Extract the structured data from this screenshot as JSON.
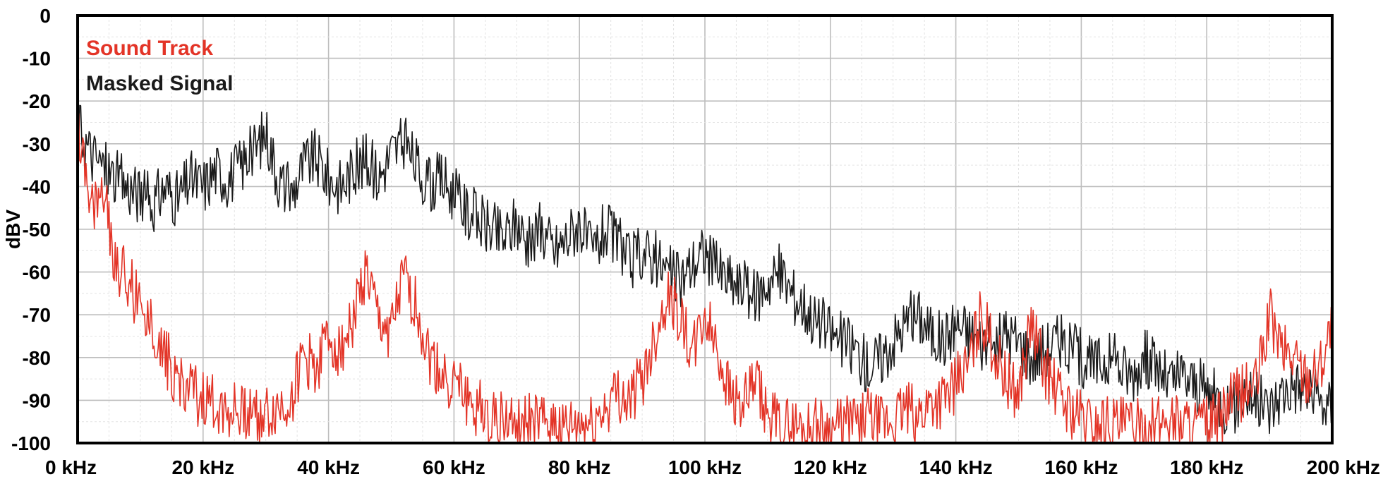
{
  "chart_data": {
    "type": "line",
    "title": "",
    "xlabel": "",
    "ylabel": "dBV",
    "xlim": [
      0,
      200
    ],
    "ylim": [
      -100,
      0
    ],
    "x_unit": "kHz",
    "x_ticks": [
      0,
      20,
      40,
      60,
      80,
      100,
      120,
      140,
      160,
      180,
      200
    ],
    "x_tick_labels": [
      "0 kHz",
      "20 kHz",
      "40 kHz",
      "60 kHz",
      "80 kHz",
      "100 kHz",
      "120 kHz",
      "140 kHz",
      "160 kHz",
      "180 kHz",
      "200 kHz"
    ],
    "y_ticks": [
      0,
      -10,
      -20,
      -30,
      -40,
      -50,
      -60,
      -70,
      -80,
      -90,
      -100
    ],
    "y_tick_labels": [
      "0",
      "-10",
      "-20",
      "-30",
      "-40",
      "-50",
      "-60",
      "-70",
      "-80",
      "-90",
      "-100"
    ],
    "grid": true,
    "legend_position": "top-left",
    "series": [
      {
        "name": "Masked Signal",
        "color": "#1a1a1a",
        "x": [
          0,
          2,
          4,
          6,
          8,
          10,
          12,
          14,
          16,
          18,
          20,
          22,
          24,
          26,
          28,
          30,
          32,
          34,
          36,
          38,
          40,
          42,
          44,
          46,
          48,
          50,
          52,
          54,
          56,
          58,
          60,
          62,
          64,
          66,
          68,
          70,
          72,
          74,
          76,
          78,
          80,
          82,
          84,
          86,
          88,
          90,
          92,
          94,
          96,
          98,
          100,
          102,
          104,
          106,
          108,
          110,
          112,
          114,
          116,
          118,
          120,
          122,
          124,
          126,
          128,
          130,
          132,
          134,
          136,
          138,
          140,
          142,
          144,
          146,
          148,
          150,
          152,
          154,
          156,
          158,
          160,
          162,
          164,
          166,
          168,
          170,
          172,
          174,
          176,
          178,
          180,
          182,
          184,
          186,
          188,
          190,
          192,
          194,
          196,
          198,
          200
        ],
        "values": [
          -25,
          -32,
          -35,
          -38,
          -40,
          -42,
          -44,
          -40,
          -43,
          -38,
          -40,
          -36,
          -38,
          -35,
          -32,
          -27,
          -38,
          -42,
          -35,
          -33,
          -38,
          -40,
          -36,
          -34,
          -38,
          -32,
          -30,
          -35,
          -40,
          -38,
          -42,
          -46,
          -48,
          -50,
          -52,
          -48,
          -54,
          -50,
          -55,
          -52,
          -48,
          -56,
          -50,
          -53,
          -58,
          -55,
          -57,
          -60,
          -62,
          -58,
          -55,
          -60,
          -62,
          -64,
          -66,
          -62,
          -60,
          -65,
          -68,
          -72,
          -74,
          -76,
          -78,
          -82,
          -80,
          -76,
          -72,
          -70,
          -74,
          -76,
          -72,
          -74,
          -76,
          -78,
          -74,
          -76,
          -80,
          -78,
          -76,
          -78,
          -80,
          -82,
          -80,
          -82,
          -84,
          -80,
          -82,
          -86,
          -84,
          -86,
          -88,
          -90,
          -92,
          -88,
          -90,
          -92,
          -88,
          -86,
          -88,
          -90,
          -92
        ]
      },
      {
        "name": "Sound Track",
        "color": "#e33427",
        "x": [
          0,
          2,
          4,
          6,
          8,
          10,
          12,
          14,
          16,
          18,
          20,
          22,
          24,
          26,
          28,
          30,
          32,
          34,
          36,
          38,
          40,
          42,
          44,
          46,
          48,
          50,
          52,
          54,
          56,
          58,
          60,
          62,
          64,
          66,
          68,
          70,
          72,
          74,
          76,
          78,
          80,
          82,
          84,
          86,
          88,
          90,
          92,
          94,
          96,
          98,
          100,
          102,
          104,
          106,
          108,
          110,
          112,
          114,
          116,
          118,
          120,
          122,
          124,
          126,
          128,
          130,
          132,
          134,
          136,
          138,
          140,
          142,
          144,
          146,
          148,
          150,
          152,
          154,
          156,
          158,
          160,
          162,
          164,
          166,
          168,
          170,
          172,
          174,
          176,
          178,
          180,
          182,
          184,
          186,
          188,
          190,
          192,
          194,
          196,
          198,
          200
        ],
        "values": [
          -28,
          -45,
          -40,
          -58,
          -62,
          -68,
          -72,
          -80,
          -85,
          -88,
          -90,
          -91,
          -92,
          -93,
          -92,
          -94,
          -92,
          -90,
          -80,
          -82,
          -75,
          -78,
          -70,
          -60,
          -72,
          -74,
          -62,
          -68,
          -80,
          -84,
          -86,
          -90,
          -92,
          -93,
          -95,
          -96,
          -95,
          -96,
          -95,
          -97,
          -96,
          -96,
          -92,
          -88,
          -90,
          -85,
          -75,
          -65,
          -70,
          -80,
          -70,
          -78,
          -88,
          -92,
          -86,
          -94,
          -96,
          -96,
          -97,
          -96,
          -97,
          -96,
          -95,
          -94,
          -96,
          -95,
          -92,
          -94,
          -90,
          -90,
          -86,
          -82,
          -70,
          -78,
          -85,
          -88,
          -72,
          -82,
          -88,
          -92,
          -94,
          -96,
          -95,
          -96,
          -96,
          -97,
          -96,
          -94,
          -95,
          -96,
          -96,
          -95,
          -90,
          -88,
          -86,
          -70,
          -78,
          -80,
          -84,
          -82,
          -72
        ]
      }
    ]
  }
}
